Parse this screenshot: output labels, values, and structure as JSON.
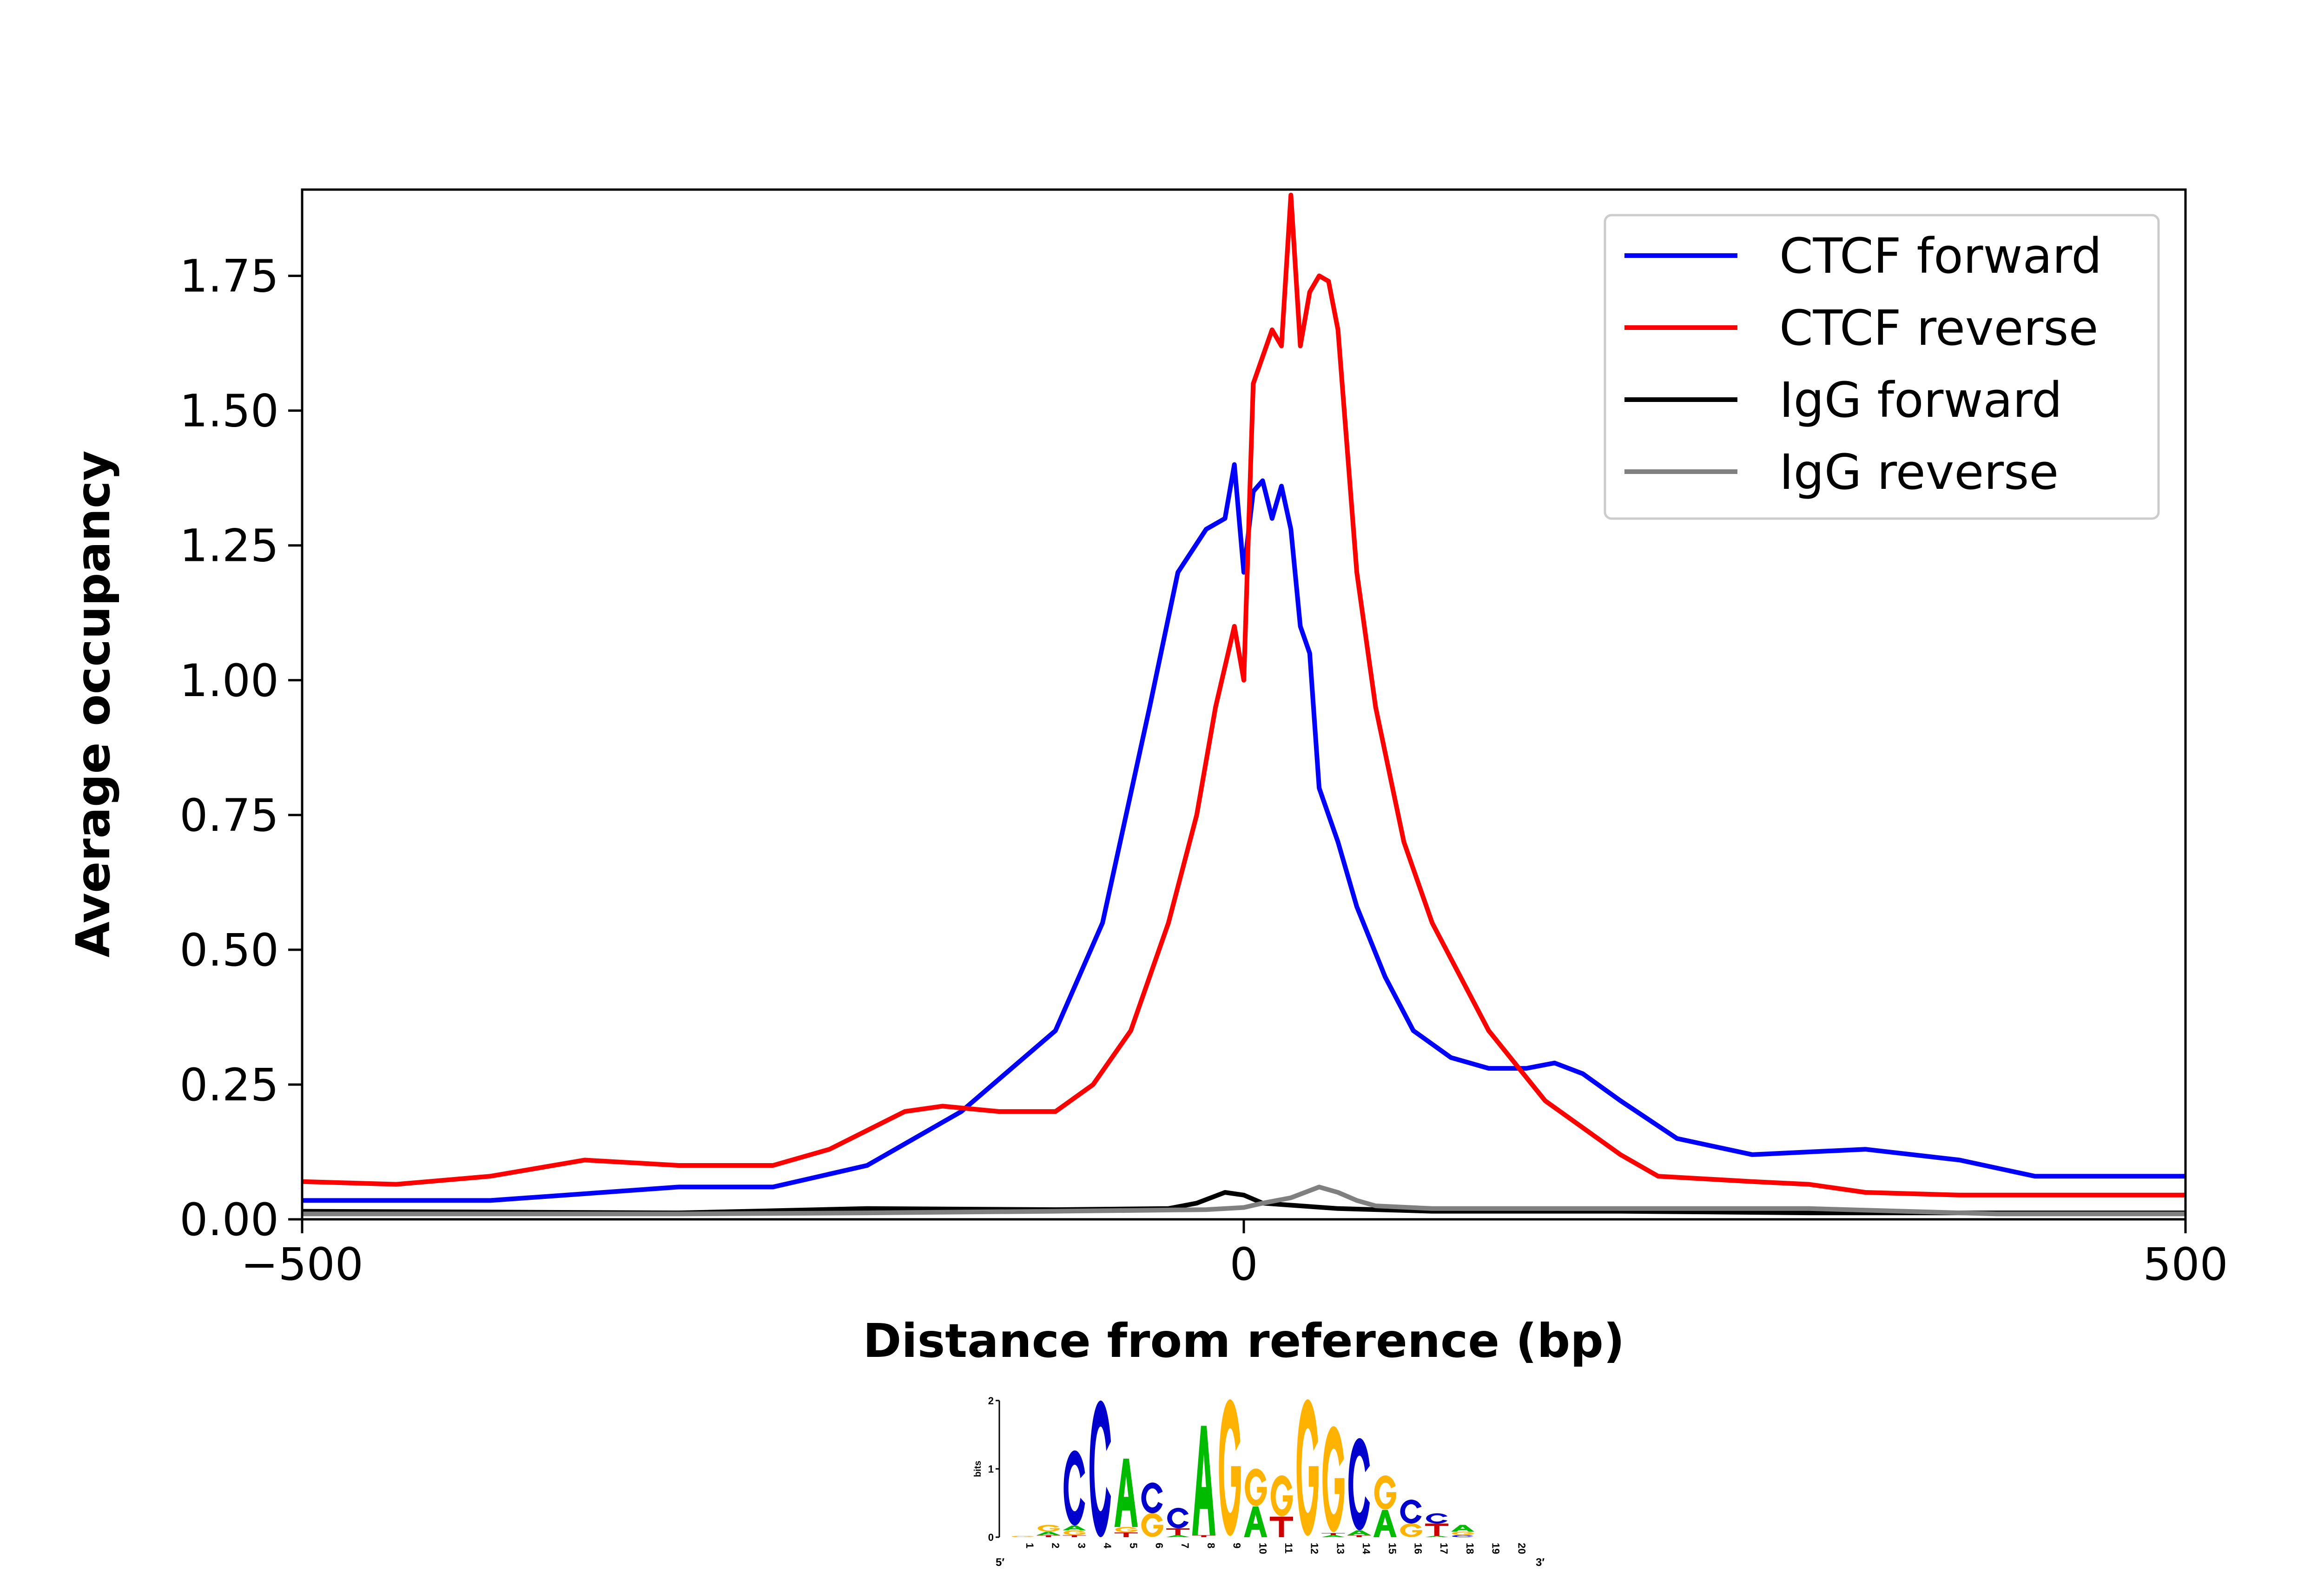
{
  "chart_data": {
    "type": "line",
    "title": "",
    "xlabel": "Distance from reference (bp)",
    "ylabel": "Average occupancy",
    "xlim": [
      -500,
      500
    ],
    "ylim": [
      0,
      1.91
    ],
    "xticks": [
      -500,
      0,
      500
    ],
    "xtick_labels": [
      "−500",
      "0",
      "500"
    ],
    "yticks": [
      0,
      0.25,
      0.5,
      0.75,
      1.0,
      1.25,
      1.5,
      1.75
    ],
    "ytick_labels": [
      "0.00",
      "0.25",
      "0.50",
      "0.75",
      "1.00",
      "1.25",
      "1.50",
      "1.75"
    ],
    "grid": false,
    "legend_position": "top-right",
    "series": [
      {
        "name": "CTCF forward",
        "color": "#0000ff",
        "x": [
          -500,
          -400,
          -300,
          -250,
          -200,
          -150,
          -100,
          -75,
          -50,
          -35,
          -20,
          -10,
          -5,
          0,
          5,
          10,
          15,
          20,
          25,
          30,
          35,
          40,
          50,
          60,
          75,
          90,
          110,
          130,
          150,
          165,
          180,
          200,
          230,
          270,
          330,
          380,
          420,
          500
        ],
        "y": [
          0.035,
          0.035,
          0.06,
          0.06,
          0.1,
          0.2,
          0.35,
          0.55,
          0.95,
          1.2,
          1.28,
          1.3,
          1.4,
          1.2,
          1.35,
          1.37,
          1.3,
          1.36,
          1.28,
          1.1,
          1.05,
          0.8,
          0.7,
          0.58,
          0.45,
          0.35,
          0.3,
          0.28,
          0.28,
          0.29,
          0.27,
          0.22,
          0.15,
          0.12,
          0.13,
          0.11,
          0.08,
          0.08
        ]
      },
      {
        "name": "CTCF reverse",
        "color": "#ff0000",
        "x": [
          -500,
          -450,
          -400,
          -350,
          -300,
          -250,
          -220,
          -180,
          -160,
          -130,
          -100,
          -80,
          -60,
          -40,
          -25,
          -15,
          -5,
          0,
          5,
          10,
          15,
          20,
          25,
          30,
          35,
          40,
          45,
          50,
          60,
          70,
          85,
          100,
          130,
          160,
          200,
          220,
          270,
          300,
          330,
          380,
          500
        ],
        "y": [
          0.07,
          0.065,
          0.08,
          0.11,
          0.1,
          0.1,
          0.13,
          0.2,
          0.21,
          0.2,
          0.2,
          0.25,
          0.35,
          0.55,
          0.75,
          0.95,
          1.1,
          1.0,
          1.55,
          1.6,
          1.65,
          1.62,
          1.9,
          1.62,
          1.72,
          1.75,
          1.74,
          1.65,
          1.2,
          0.95,
          0.7,
          0.55,
          0.35,
          0.22,
          0.12,
          0.08,
          0.07,
          0.065,
          0.05,
          0.045,
          0.045
        ]
      },
      {
        "name": "IgG forward",
        "color": "#000000",
        "x": [
          -500,
          -300,
          -200,
          -100,
          -40,
          -25,
          -10,
          0,
          10,
          30,
          50,
          100,
          200,
          300,
          400,
          500
        ],
        "y": [
          0.015,
          0.012,
          0.02,
          0.018,
          0.02,
          0.03,
          0.05,
          0.045,
          0.03,
          0.025,
          0.02,
          0.015,
          0.015,
          0.012,
          0.012,
          0.012
        ]
      },
      {
        "name": "IgG reverse",
        "color": "#808080",
        "x": [
          -500,
          -300,
          -200,
          -100,
          -20,
          0,
          10,
          25,
          40,
          50,
          60,
          70,
          100,
          200,
          300,
          400,
          500
        ],
        "y": [
          0.01,
          0.01,
          0.012,
          0.015,
          0.018,
          0.022,
          0.03,
          0.04,
          0.06,
          0.05,
          0.035,
          0.025,
          0.02,
          0.02,
          0.02,
          0.01,
          0.01
        ]
      }
    ]
  },
  "motif_logo": {
    "ylabel": "bits",
    "yticks": [
      "0",
      "1",
      "2"
    ],
    "five_prime": "5′",
    "three_prime": "3′",
    "colors": {
      "A": "#00bb00",
      "C": "#0000cc",
      "G": "#ffb300",
      "T": "#cc0000"
    },
    "positions": [
      [
        [
          "G",
          0.02
        ]
      ],
      [
        [
          "T",
          0.03
        ],
        [
          "A",
          0.05
        ],
        [
          "G",
          0.1
        ]
      ],
      [
        [
          "T",
          0.03
        ],
        [
          "G",
          0.07
        ],
        [
          "A",
          0.07
        ],
        [
          "C",
          1.1
        ]
      ],
      [
        [
          "C",
          2.0
        ]
      ],
      [
        [
          "T",
          0.07
        ],
        [
          "G",
          0.08
        ],
        [
          "A",
          1.0
        ]
      ],
      [
        [
          "G",
          0.35
        ],
        [
          "C",
          0.45
        ]
      ],
      [
        [
          "A",
          0.03
        ],
        [
          "T",
          0.1
        ],
        [
          "C",
          0.3
        ]
      ],
      [
        [
          "T",
          0.03
        ],
        [
          "A",
          1.6
        ]
      ],
      [
        [
          "G",
          2.0
        ]
      ],
      [
        [
          "A",
          0.45
        ],
        [
          "G",
          0.55
        ]
      ],
      [
        [
          "T",
          0.3
        ],
        [
          "G",
          0.6
        ]
      ],
      [
        [
          "G",
          2.0
        ]
      ],
      [
        [
          "A",
          0.03
        ],
        [
          "T",
          0.03
        ],
        [
          "G",
          1.55
        ]
      ],
      [
        [
          "T",
          0.03
        ],
        [
          "A",
          0.07
        ],
        [
          "C",
          1.35
        ]
      ],
      [
        [
          "A",
          0.4
        ],
        [
          "G",
          0.5
        ]
      ],
      [
        [
          "G",
          0.2
        ],
        [
          "C",
          0.35
        ]
      ],
      [
        [
          "A",
          0.02
        ],
        [
          "T",
          0.18
        ],
        [
          "C",
          0.15
        ]
      ],
      [
        [
          "C",
          0.03
        ],
        [
          "G",
          0.05
        ],
        [
          "A",
          0.1
        ]
      ],
      [],
      []
    ]
  }
}
